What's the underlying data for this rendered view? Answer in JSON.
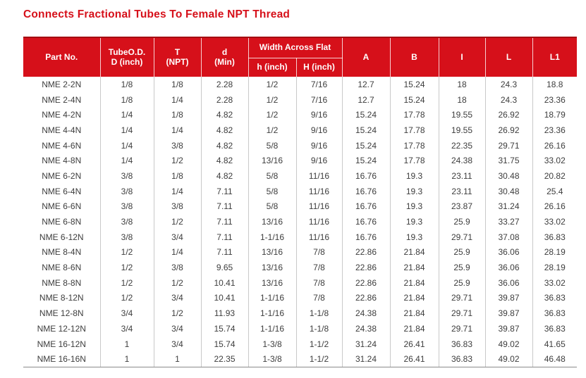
{
  "page": {
    "title": "Connects Fractional Tubes To Female NPT Thread"
  },
  "colors": {
    "accent_red": "#d6101a",
    "header_text": "#ffffff",
    "data_text": "#3d3d3d",
    "grid_line": "#c9c9c9"
  },
  "table": {
    "header": {
      "part_no": "Part No.",
      "tube_od_line1": "TubeO.D.",
      "tube_od_line2": "D (inch)",
      "t_line1": "T",
      "t_line2": "(NPT)",
      "d_line1": "d",
      "d_line2": "(Min)",
      "width_across_flat": "Width Across Flat",
      "h_inch": "h (inch)",
      "H_inch": "H (inch)",
      "A": "A",
      "B": "B",
      "I": "I",
      "L": "L",
      "L1": "L1"
    },
    "rows": [
      [
        "NME 2-2N",
        "1/8",
        "1/8",
        "2.28",
        "1/2",
        "7/16",
        "12.7",
        "15.24",
        "18",
        "24.3",
        "18.8"
      ],
      [
        "NME 2-4N",
        "1/8",
        "1/4",
        "2.28",
        "1/2",
        "7/16",
        "12.7",
        "15.24",
        "18",
        "24.3",
        "23.36"
      ],
      [
        "NME 4-2N",
        "1/4",
        "1/8",
        "4.82",
        "1/2",
        "9/16",
        "15.24",
        "17.78",
        "19.55",
        "26.92",
        "18.79"
      ],
      [
        "NME 4-4N",
        "1/4",
        "1/4",
        "4.82",
        "1/2",
        "9/16",
        "15.24",
        "17.78",
        "19.55",
        "26.92",
        "23.36"
      ],
      [
        "NME 4-6N",
        "1/4",
        "3/8",
        "4.82",
        "5/8",
        "9/16",
        "15.24",
        "17.78",
        "22.35",
        "29.71",
        "26.16"
      ],
      [
        "NME 4-8N",
        "1/4",
        "1/2",
        "4.82",
        "13/16",
        "9/16",
        "15.24",
        "17.78",
        "24.38",
        "31.75",
        "33.02"
      ],
      [
        "NME 6-2N",
        "3/8",
        "1/8",
        "4.82",
        "5/8",
        "11/16",
        "16.76",
        "19.3",
        "23.11",
        "30.48",
        "20.82"
      ],
      [
        "NME 6-4N",
        "3/8",
        "1/4",
        "7.11",
        "5/8",
        "11/16",
        "16.76",
        "19.3",
        "23.11",
        "30.48",
        "25.4"
      ],
      [
        "NME 6-6N",
        "3/8",
        "3/8",
        "7.11",
        "5/8",
        "11/16",
        "16.76",
        "19.3",
        "23.87",
        "31.24",
        "26.16"
      ],
      [
        "NME 6-8N",
        "3/8",
        "1/2",
        "7.11",
        "13/16",
        "11/16",
        "16.76",
        "19.3",
        "25.9",
        "33.27",
        "33.02"
      ],
      [
        "NME 6-12N",
        "3/8",
        "3/4",
        "7.11",
        "1-1/16",
        "11/16",
        "16.76",
        "19.3",
        "29.71",
        "37.08",
        "36.83"
      ],
      [
        "NME 8-4N",
        "1/2",
        "1/4",
        "7.11",
        "13/16",
        "7/8",
        "22.86",
        "21.84",
        "25.9",
        "36.06",
        "28.19"
      ],
      [
        "NME 8-6N",
        "1/2",
        "3/8",
        "9.65",
        "13/16",
        "7/8",
        "22.86",
        "21.84",
        "25.9",
        "36.06",
        "28.19"
      ],
      [
        "NME 8-8N",
        "1/2",
        "1/2",
        "10.41",
        "13/16",
        "7/8",
        "22.86",
        "21.84",
        "25.9",
        "36.06",
        "33.02"
      ],
      [
        "NME 8-12N",
        "1/2",
        "3/4",
        "10.41",
        "1-1/16",
        "7/8",
        "22.86",
        "21.84",
        "29.71",
        "39.87",
        "36.83"
      ],
      [
        "NME 12-8N",
        "3/4",
        "1/2",
        "11.93",
        "1-1/16",
        "1-1/8",
        "24.38",
        "21.84",
        "29.71",
        "39.87",
        "36.83"
      ],
      [
        "NME 12-12N",
        "3/4",
        "3/4",
        "15.74",
        "1-1/16",
        "1-1/8",
        "24.38",
        "21.84",
        "29.71",
        "39.87",
        "36.83"
      ],
      [
        "NME 16-12N",
        "1",
        "3/4",
        "15.74",
        "1-3/8",
        "1-1/2",
        "31.24",
        "26.41",
        "36.83",
        "49.02",
        "41.65"
      ],
      [
        "NME 16-16N",
        "1",
        "1",
        "22.35",
        "1-3/8",
        "1-1/2",
        "31.24",
        "26.41",
        "36.83",
        "49.02",
        "46.48"
      ]
    ]
  }
}
